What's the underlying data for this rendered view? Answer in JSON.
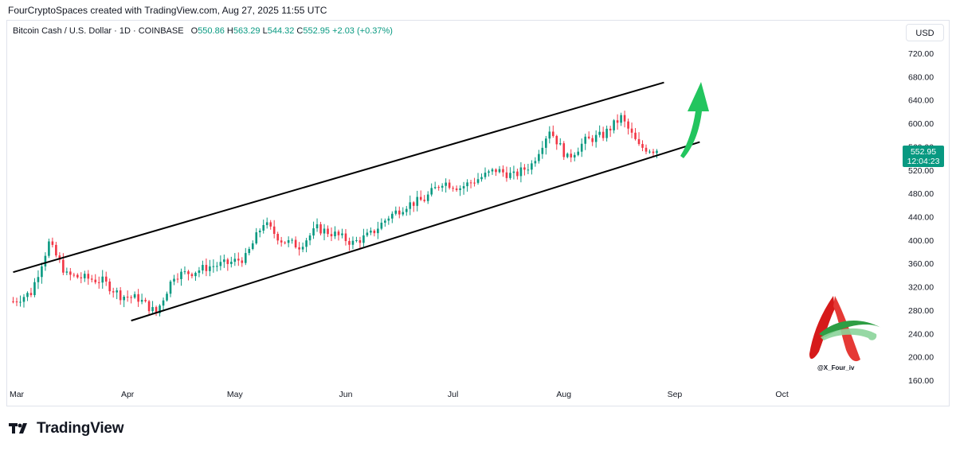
{
  "header": {
    "caption": "FourCryptoSpaces created with TradingView.com, Aug 27, 2025 11:55 UTC"
  },
  "legend": {
    "symbol": "Bitcoin Cash / U.S. Dollar · 1D · COINBASE",
    "open_label": "O",
    "open": "550.86",
    "high_label": "H",
    "high": "563.29",
    "low_label": "L",
    "low": "544.32",
    "close_label": "C",
    "close": "552.95",
    "change": "+2.03 (+0.37%)"
  },
  "currency": "USD",
  "price_tag": {
    "price": "552.95",
    "countdown": "12:04:23"
  },
  "brand": {
    "name": "TradingView"
  },
  "watermark": {
    "handle": "@X_Four_iv"
  },
  "colors": {
    "up": "#089981",
    "down": "#f23645",
    "arrow": "#22c55e",
    "channel": "#000000"
  },
  "chart_data": {
    "type": "candlestick",
    "ylim": [
      160,
      730
    ],
    "y_ticks": [
      "720.00",
      "680.00",
      "640.00",
      "600.00",
      "560.00",
      "520.00",
      "480.00",
      "440.00",
      "400.00",
      "360.00",
      "320.00",
      "280.00",
      "240.00",
      "200.00",
      "160.00"
    ],
    "x_ticks": [
      "Mar",
      "Apr",
      "May",
      "Jun",
      "Jul",
      "Aug",
      "Sep",
      "Oct"
    ],
    "x_range": [
      "2025-03-01",
      "2025-10-08"
    ],
    "trend_series": {
      "dates": [
        "2025-02-28",
        "2025-03-05",
        "2025-03-10",
        "2025-03-15",
        "2025-03-20",
        "2025-03-25",
        "2025-03-30",
        "2025-04-04",
        "2025-04-09",
        "2025-04-14",
        "2025-04-19",
        "2025-04-24",
        "2025-04-29",
        "2025-05-04",
        "2025-05-09",
        "2025-05-14",
        "2025-05-19",
        "2025-05-24",
        "2025-05-29",
        "2025-06-03",
        "2025-06-08",
        "2025-06-13",
        "2025-06-18",
        "2025-06-23",
        "2025-06-28",
        "2025-07-03",
        "2025-07-08",
        "2025-07-13",
        "2025-07-18",
        "2025-07-23",
        "2025-07-28",
        "2025-08-02",
        "2025-08-07",
        "2025-08-12",
        "2025-08-17",
        "2025-08-22",
        "2025-08-27"
      ],
      "close": [
        295,
        310,
        395,
        340,
        335,
        330,
        305,
        300,
        275,
        340,
        345,
        355,
        360,
        370,
        430,
        400,
        390,
        420,
        410,
        395,
        410,
        440,
        460,
        470,
        500,
        490,
        505,
        520,
        510,
        530,
        590,
        540,
        570,
        580,
        610,
        560,
        552.95
      ]
    },
    "channel": {
      "upper": [
        {
          "date": "2025-02-28",
          "price": 345
        },
        {
          "date": "2025-08-29",
          "price": 670
        }
      ],
      "lower": [
        {
          "date": "2025-04-02",
          "price": 262
        },
        {
          "date": "2025-09-08",
          "price": 568
        }
      ]
    }
  }
}
